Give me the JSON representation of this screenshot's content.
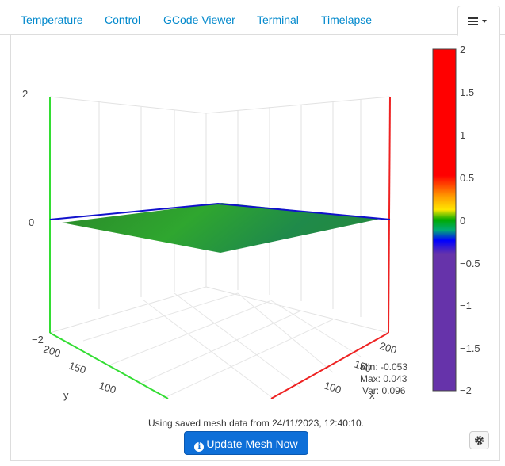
{
  "tabs": [
    {
      "label": "Temperature"
    },
    {
      "label": "Control"
    },
    {
      "label": "GCode Viewer"
    },
    {
      "label": "Terminal"
    },
    {
      "label": "Timelapse"
    }
  ],
  "menu_icon": "hamburger-menu-icon",
  "chart_data": {
    "type": "surface3d",
    "z_axis": {
      "ticks": [
        "2",
        "0",
        "−2"
      ],
      "range": [
        -2,
        2
      ]
    },
    "y_axis": {
      "label": "y",
      "ticks": [
        "200",
        "150",
        "100"
      ]
    },
    "x_axis": {
      "label": "x",
      "ticks": [
        "200",
        "150",
        "100"
      ]
    },
    "colorbar": {
      "range": [
        -2,
        2
      ],
      "ticks": [
        "2",
        "1.5",
        "1",
        "0.5",
        "0",
        "−0.5",
        "−1",
        "−1.5",
        "−2"
      ]
    },
    "stats": {
      "min": "Min: -0.053",
      "max": "Max: 0.043",
      "var": "Var: 0.096"
    },
    "grid": true
  },
  "status": {
    "text": "Using saved mesh data from 24/11/2023, 12:40:10."
  },
  "buttons": {
    "update": "Update Mesh Now",
    "settings_icon": "gear-icon"
  },
  "colors": {
    "accent": "#0088cc",
    "button": "#0e6fd8"
  }
}
